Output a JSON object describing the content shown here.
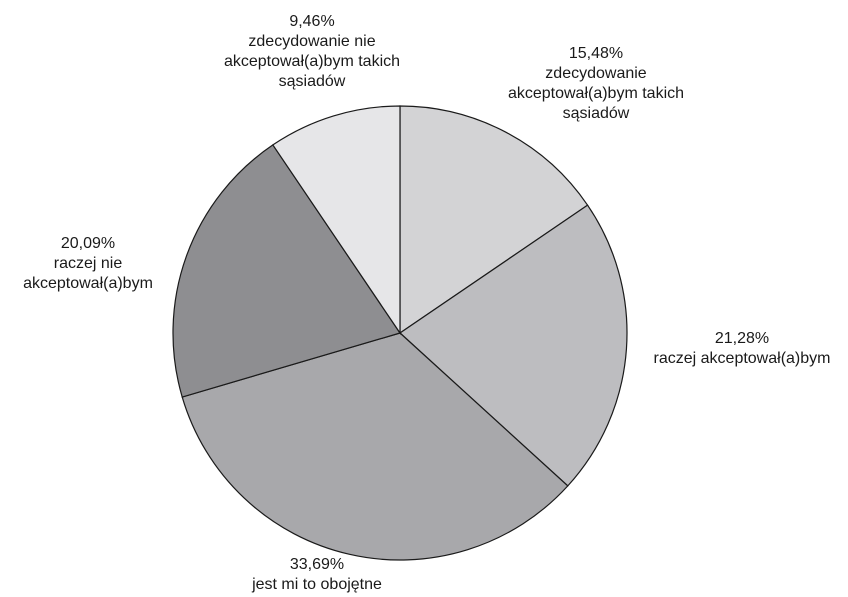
{
  "chart_data": {
    "type": "pie",
    "title": "",
    "start_angle_deg": 0,
    "direction": "clockwise",
    "slices": [
      {
        "name": "zdecydowanie akceptował(a)bym takich sąsiadów",
        "value": 15.48,
        "percent_label": "15,48%",
        "label_lines": [
          "zdecydowanie",
          "akceptował(a)bym takich",
          "sąsiadów"
        ],
        "color": "#d3d3d5"
      },
      {
        "name": "raczej akceptował(a)bym",
        "value": 21.28,
        "percent_label": "21,28%",
        "label_lines": [
          "raczej akceptował(a)bym"
        ],
        "color": "#bdbdc0"
      },
      {
        "name": "jest mi to obojętne",
        "value": 33.69,
        "percent_label": "33,69%",
        "label_lines": [
          "jest mi to obojętne"
        ],
        "color": "#a8a8ab"
      },
      {
        "name": "raczej nie akceptował(a)bym",
        "value": 20.09,
        "percent_label": "20,09%",
        "label_lines": [
          "raczej nie",
          "akceptował(a)bym"
        ],
        "color": "#8e8e91"
      },
      {
        "name": "zdecydowanie nie akceptował(a)bym takich sąsiadów",
        "value": 9.46,
        "percent_label": "9,46%",
        "label_lines": [
          "zdecydowanie nie",
          "akceptował(a)bym takich",
          "sąsiadów"
        ],
        "color": "#e6e6e8"
      }
    ]
  }
}
